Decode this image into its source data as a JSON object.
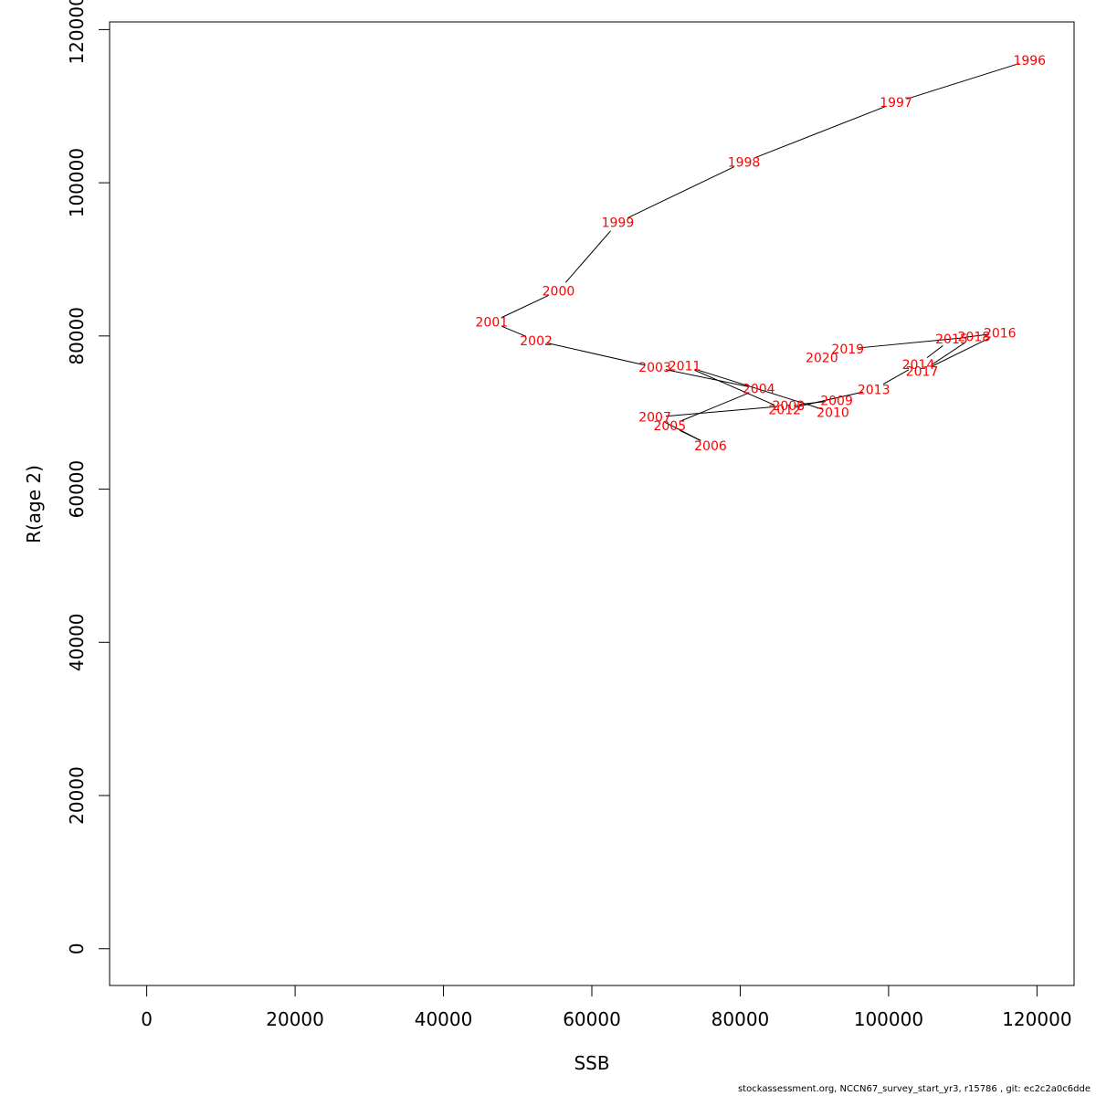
{
  "chart_data": {
    "type": "line",
    "xlabel": "SSB",
    "ylabel": "R(age 2)",
    "xlim": [
      -5000,
      125000
    ],
    "ylim": [
      -4800,
      121000
    ],
    "xticks": [
      0,
      20000,
      40000,
      60000,
      80000,
      100000,
      120000
    ],
    "yticks": [
      0,
      20000,
      40000,
      60000,
      80000,
      100000,
      120000
    ],
    "line_color": "#000000",
    "label_color": "#ff0000",
    "points": [
      {
        "year": "1996",
        "x": 119000,
        "y": 116000
      },
      {
        "year": "1997",
        "x": 101000,
        "y": 110500
      },
      {
        "year": "1998",
        "x": 80500,
        "y": 102700
      },
      {
        "year": "1999",
        "x": 63500,
        "y": 94800
      },
      {
        "year": "2000",
        "x": 55500,
        "y": 85900
      },
      {
        "year": "2001",
        "x": 46500,
        "y": 81800
      },
      {
        "year": "2002",
        "x": 52500,
        "y": 79400
      },
      {
        "year": "2003",
        "x": 68500,
        "y": 75900
      },
      {
        "year": "2004",
        "x": 82500,
        "y": 73100
      },
      {
        "year": "2005",
        "x": 70500,
        "y": 68300
      },
      {
        "year": "2006",
        "x": 76000,
        "y": 65700
      },
      {
        "year": "2007",
        "x": 68500,
        "y": 69400
      },
      {
        "year": "2008",
        "x": 86500,
        "y": 70900
      },
      {
        "year": "2009",
        "x": 93000,
        "y": 71600
      },
      {
        "year": "2010",
        "x": 92500,
        "y": 70000
      },
      {
        "year": "2011",
        "x": 72500,
        "y": 76100
      },
      {
        "year": "2012",
        "x": 86000,
        "y": 70400
      },
      {
        "year": "2013",
        "x": 98000,
        "y": 73000
      },
      {
        "year": "2014",
        "x": 104000,
        "y": 76300
      },
      {
        "year": "2015",
        "x": 108500,
        "y": 79600
      },
      {
        "year": "2016",
        "x": 115000,
        "y": 80400
      },
      {
        "year": "2017",
        "x": 104500,
        "y": 75400
      },
      {
        "year": "2018",
        "x": 111500,
        "y": 79900
      },
      {
        "year": "2019",
        "x": 94500,
        "y": 78300
      },
      {
        "year": "2020",
        "x": 91000,
        "y": 77200
      }
    ]
  },
  "footer_text": "stockassessment.org, NCCN67_survey_start_yr3, r15786 , git: ec2c2a0c6dde"
}
